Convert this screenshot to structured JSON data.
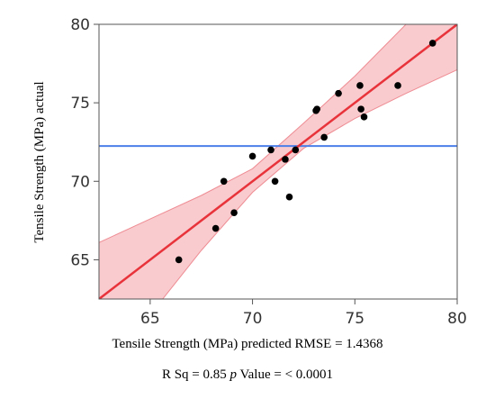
{
  "chart_data": {
    "type": "scatter",
    "title": "",
    "xlabel": "Tensile Strength (MPa) predicted RMSE = 1.4368",
    "ylabel": "Tensile Strength (MPa) actual",
    "stats_prefix": "R Sq = 0.85",
    "p_symbol": "p",
    "stats_suffix": "Value = < 0.0001",
    "xlim": [
      62.5,
      80
    ],
    "ylim": [
      62.5,
      80
    ],
    "x_ticks": [
      65,
      70,
      75,
      80
    ],
    "y_ticks": [
      65,
      70,
      75,
      80
    ],
    "x_tick_labels": [
      "65",
      "70",
      "75",
      "80"
    ],
    "y_tick_labels": [
      "65",
      "70",
      "75",
      "80"
    ],
    "grid": false,
    "points": [
      {
        "x": 66.4,
        "y": 65.0
      },
      {
        "x": 68.2,
        "y": 67.0
      },
      {
        "x": 68.6,
        "y": 70.0
      },
      {
        "x": 69.1,
        "y": 68.0
      },
      {
        "x": 70.0,
        "y": 71.6
      },
      {
        "x": 70.9,
        "y": 72.0
      },
      {
        "x": 71.1,
        "y": 70.0
      },
      {
        "x": 71.6,
        "y": 71.4
      },
      {
        "x": 71.8,
        "y": 69.0
      },
      {
        "x": 72.1,
        "y": 72.0
      },
      {
        "x": 73.1,
        "y": 74.5
      },
      {
        "x": 73.15,
        "y": 74.6
      },
      {
        "x": 73.5,
        "y": 72.8
      },
      {
        "x": 74.2,
        "y": 75.6
      },
      {
        "x": 75.25,
        "y": 76.1
      },
      {
        "x": 75.3,
        "y": 74.6
      },
      {
        "x": 75.45,
        "y": 74.1
      },
      {
        "x": 77.1,
        "y": 76.1
      },
      {
        "x": 78.8,
        "y": 78.8
      }
    ],
    "fit_line": {
      "x": [
        62.5,
        80
      ],
      "y": [
        62.5,
        80
      ]
    },
    "mean_line": {
      "y": 72.25
    },
    "confidence_band": {
      "x": [
        62.5,
        65,
        67.5,
        70,
        72.5,
        75,
        77.5,
        80
      ],
      "lower": [
        57.5,
        61.5,
        65.6,
        69.3,
        72.1,
        74.0,
        75.6,
        77.1
      ],
      "upper": [
        66.1,
        67.6,
        69.1,
        70.8,
        73.7,
        76.7,
        80.0,
        83.1
      ]
    },
    "colors": {
      "points": "#000000",
      "fit_line": "#e8333b",
      "band_fill": "#f7b9bd",
      "band_edge": "#ee8c93",
      "mean_line": "#4c7fe8",
      "axis": "#555555"
    }
  }
}
